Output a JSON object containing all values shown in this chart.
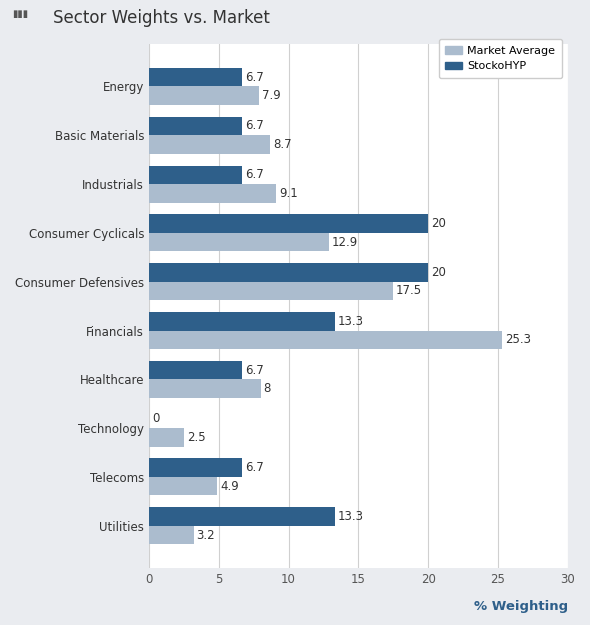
{
  "title": "Sector Weights vs. Market",
  "categories": [
    "Energy",
    "Basic Materials",
    "Industrials",
    "Consumer Cyclicals",
    "Consumer Defensives",
    "Financials",
    "Healthcare",
    "Technology",
    "Telecoms",
    "Utilities"
  ],
  "stocko_values": [
    6.7,
    6.7,
    6.7,
    20.0,
    20.0,
    13.3,
    6.7,
    0.0,
    6.7,
    13.3
  ],
  "market_values": [
    7.9,
    8.7,
    9.1,
    12.9,
    17.5,
    25.3,
    8.0,
    2.5,
    4.9,
    3.2
  ],
  "stocko_color": "#2e5f8a",
  "market_color": "#abbcce",
  "background_color": "#eaecf0",
  "plot_bg_color": "#ffffff",
  "xlabel": "% Weighting",
  "xlabel_color": "#2e5f8a",
  "xlim": [
    0,
    30
  ],
  "xticks": [
    0,
    5,
    10,
    15,
    20,
    25,
    30
  ],
  "legend_labels": [
    "Market Average",
    "StockoHYP"
  ],
  "bar_height": 0.38,
  "grid_color": "#d0d0d0",
  "label_fontsize": 8.5,
  "tick_fontsize": 8.5,
  "cat_fontsize": 8.5,
  "title_fontsize": 12,
  "xlabel_fontsize": 9.5
}
